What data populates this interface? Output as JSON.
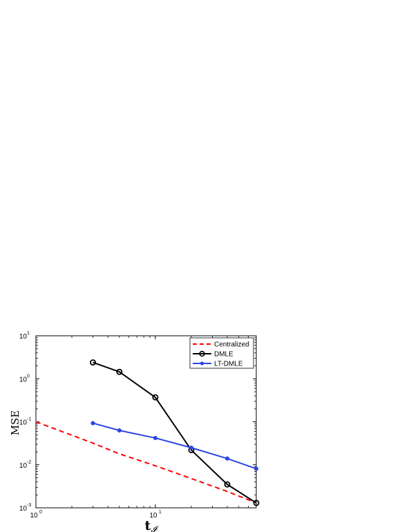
{
  "chart_data": {
    "type": "line",
    "x_scale": "log",
    "y_scale": "log",
    "xlim": [
      1,
      70
    ],
    "ylim": [
      0.001,
      10
    ],
    "grid": false,
    "legend_position": "top-right",
    "xlabel": "t",
    "xlabel_subscript": "𝓘",
    "ylabel": "MSE",
    "x_ticks": [
      {
        "value": 1,
        "base": "10",
        "exp": "0"
      },
      {
        "value": 10,
        "base": "10",
        "exp": "1"
      }
    ],
    "y_ticks": [
      {
        "value": 0.001,
        "base": "10",
        "exp": "-3"
      },
      {
        "value": 0.01,
        "base": "10",
        "exp": "-2"
      },
      {
        "value": 0.1,
        "base": "10",
        "exp": "-1"
      },
      {
        "value": 1,
        "base": "10",
        "exp": "0"
      },
      {
        "value": 10,
        "base": "10",
        "exp": "1"
      }
    ],
    "series": [
      {
        "name": "Centralized",
        "color": "#ff0000",
        "line_style": "dashed",
        "marker": "none",
        "x": [
          1,
          3,
          5,
          10,
          20,
          40,
          70
        ],
        "y": [
          0.1,
          0.032,
          0.018,
          0.0095,
          0.0048,
          0.0024,
          0.0013
        ]
      },
      {
        "name": "DMLE",
        "color": "#000000",
        "line_style": "solid",
        "marker": "open-circle",
        "x": [
          3,
          5,
          10,
          20,
          40,
          70
        ],
        "y": [
          2.4,
          1.45,
          0.37,
          0.022,
          0.0035,
          0.0013
        ]
      },
      {
        "name": "LT-DMLE",
        "color": "#2a45e0",
        "line_style": "solid",
        "marker": "filled-dot",
        "x": [
          3,
          5,
          10,
          20,
          40,
          70
        ],
        "y": [
          0.093,
          0.063,
          0.042,
          0.025,
          0.014,
          0.0081
        ]
      }
    ]
  }
}
